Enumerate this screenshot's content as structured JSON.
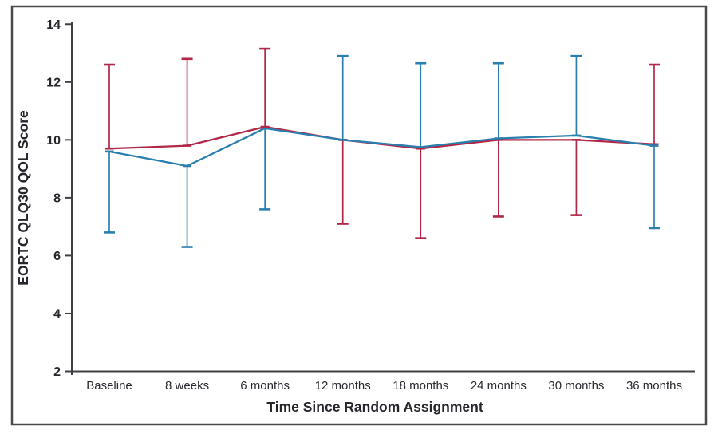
{
  "figure": {
    "background": "#ffffff",
    "frame_color": "#4a4a4d",
    "axis_color": "#3f3f46",
    "text_color": "#26262c"
  },
  "chart_data": {
    "type": "line",
    "title": "",
    "xlabel": "Time Since Random Assignment",
    "ylabel": "EORTC QLQ30 QOL Score",
    "categories": [
      "Baseline",
      "8 weeks",
      "6 months",
      "12 months",
      "18 months",
      "24 months",
      "30 months",
      "36 months"
    ],
    "ylim": [
      2,
      14
    ],
    "yticks": [
      2,
      4,
      6,
      8,
      10,
      12,
      14
    ],
    "grid": false,
    "legend_position": "none",
    "error_bar_style": "one-sided with end caps",
    "series": [
      {
        "name": "red-arm",
        "color": "#b02747",
        "values": [
          9.7,
          9.8,
          10.45,
          10.0,
          9.7,
          10.0,
          10.0,
          9.85
        ],
        "error_upper": [
          12.6,
          12.8,
          13.15,
          null,
          null,
          null,
          null,
          12.6
        ],
        "error_lower": [
          null,
          null,
          null,
          7.1,
          6.6,
          7.35,
          7.4,
          null
        ]
      },
      {
        "name": "blue-arm",
        "color": "#2a7fae",
        "values": [
          9.6,
          9.1,
          10.4,
          10.0,
          9.75,
          10.05,
          10.15,
          9.8
        ],
        "error_upper": [
          null,
          null,
          null,
          12.9,
          12.65,
          12.65,
          12.9,
          null
        ],
        "error_lower": [
          6.8,
          6.3,
          7.6,
          null,
          null,
          null,
          null,
          6.95
        ]
      }
    ]
  }
}
